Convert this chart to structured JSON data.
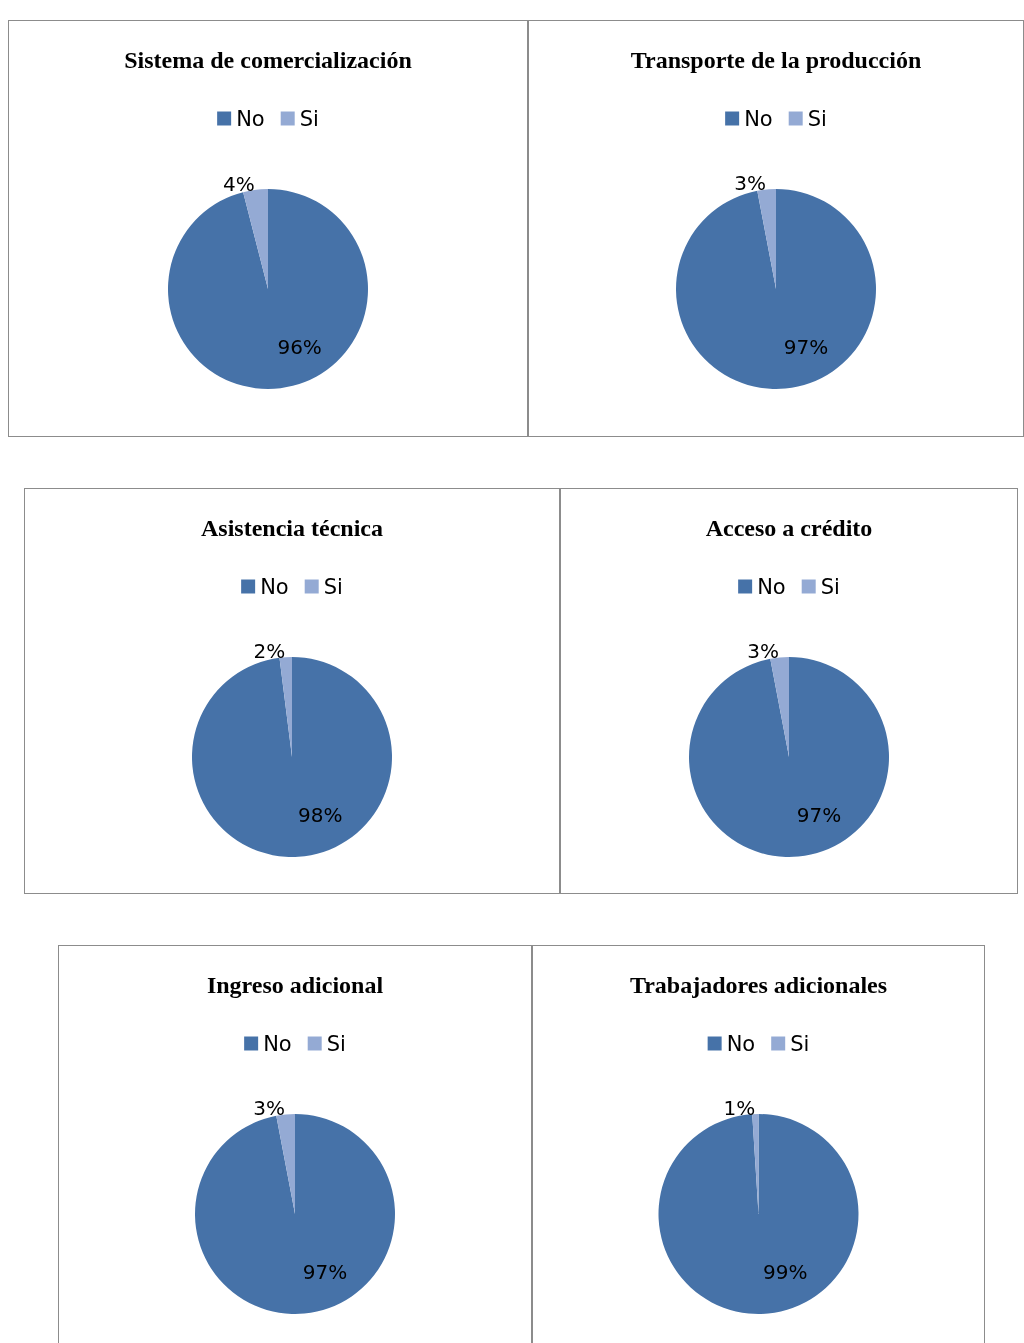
{
  "chart_data": [
    {
      "type": "pie",
      "title": "Sistema de comercialización",
      "categories": [
        "No",
        "Si"
      ],
      "values": [
        96,
        4
      ],
      "colors": [
        "#4672a8",
        "#94aad4"
      ],
      "value_labels": [
        "96%",
        "4%"
      ],
      "legend": "top"
    },
    {
      "type": "pie",
      "title": "Transporte de la producción",
      "categories": [
        "No",
        "Si"
      ],
      "values": [
        97,
        3
      ],
      "colors": [
        "#4672a8",
        "#94aad4"
      ],
      "value_labels": [
        "97%",
        "3%"
      ],
      "legend": "top"
    },
    {
      "type": "pie",
      "title": "Asistencia técnica",
      "categories": [
        "No",
        "Si"
      ],
      "values": [
        98,
        2
      ],
      "colors": [
        "#4672a8",
        "#94aad4"
      ],
      "value_labels": [
        "98%",
        "2%"
      ],
      "legend": "top"
    },
    {
      "type": "pie",
      "title": "Acceso a crédito",
      "categories": [
        "No",
        "Si"
      ],
      "values": [
        97,
        3
      ],
      "colors": [
        "#4672a8",
        "#94aad4"
      ],
      "value_labels": [
        "97%",
        "3%"
      ],
      "legend": "top"
    },
    {
      "type": "pie",
      "title": "Ingreso adicional",
      "categories": [
        "No",
        "Si"
      ],
      "values": [
        97,
        3
      ],
      "colors": [
        "#4672a8",
        "#94aad4"
      ],
      "value_labels": [
        "97%",
        "3%"
      ],
      "legend": "top"
    },
    {
      "type": "pie",
      "title": "Trabajadores adicionales",
      "categories": [
        "No",
        "Si"
      ],
      "values": [
        99,
        1
      ],
      "colors": [
        "#4672a8",
        "#94aad4"
      ],
      "value_labels": [
        "99%",
        "1%"
      ],
      "legend": "top"
    }
  ]
}
